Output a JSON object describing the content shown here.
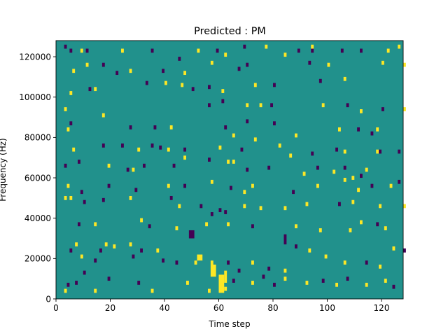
{
  "chart_data": {
    "type": "heatmap",
    "title": "Predicted : PM",
    "xlabel": "Time step",
    "ylabel": "Frequency (Hz)",
    "xlim": [
      0,
      128
    ],
    "ylim": [
      0,
      128000
    ],
    "x_ticks": [
      0,
      20,
      40,
      60,
      80,
      100,
      120
    ],
    "y_ticks": [
      0,
      20000,
      40000,
      60000,
      80000,
      100000,
      120000
    ],
    "x_tick_labels": [
      "0",
      "20",
      "40",
      "60",
      "80",
      "100",
      "120"
    ],
    "y_tick_labels": [
      "0",
      "20000",
      "40000",
      "60000",
      "80000",
      "100000",
      "120000"
    ],
    "grid": false,
    "legend": "none",
    "value_levels": [
      -1,
      0,
      1
    ],
    "colormap": {
      "-1": "#440154",
      "0": "#21918c",
      "1": "#fde725"
    },
    "background_value": 0,
    "bins": {
      "time_steps": 128,
      "frequency_bins": 128,
      "frequency_bin_hz": 1000
    },
    "cells": [
      [
        3,
        124,
        -1
      ],
      [
        5,
        122,
        -1
      ],
      [
        9,
        122,
        1
      ],
      [
        11,
        122,
        -1
      ],
      [
        24,
        122,
        1
      ],
      [
        35,
        122,
        -1
      ],
      [
        52,
        122,
        1
      ],
      [
        59,
        122,
        -1
      ],
      [
        89,
        122,
        -1
      ],
      [
        94,
        122,
        -1
      ],
      [
        105,
        122,
        -1
      ],
      [
        112,
        122,
        -1
      ],
      [
        122,
        122,
        1
      ],
      [
        126,
        124,
        1
      ],
      [
        94,
        124,
        1
      ],
      [
        69,
        124,
        -1
      ],
      [
        77,
        124,
        1
      ],
      [
        6,
        112,
        1
      ],
      [
        11,
        115,
        1
      ],
      [
        17,
        115,
        -1
      ],
      [
        22,
        111,
        -1
      ],
      [
        27,
        112,
        1
      ],
      [
        39,
        112,
        -1
      ],
      [
        47,
        111,
        1
      ],
      [
        57,
        116,
        1
      ],
      [
        67,
        113,
        -1
      ],
      [
        70,
        115,
        -1
      ],
      [
        93,
        116,
        -1
      ],
      [
        100,
        115,
        1
      ],
      [
        120,
        116,
        1
      ],
      [
        128,
        115,
        1
      ],
      [
        45,
        118,
        -1
      ],
      [
        62,
        120,
        1
      ],
      [
        84,
        120,
        1
      ],
      [
        5,
        101,
        1
      ],
      [
        12,
        103,
        -1
      ],
      [
        14,
        103,
        1
      ],
      [
        33,
        106,
        -1
      ],
      [
        40,
        106,
        1
      ],
      [
        46,
        105,
        1
      ],
      [
        50,
        103,
        -1
      ],
      [
        56,
        104,
        -1
      ],
      [
        61,
        102,
        1
      ],
      [
        73,
        105,
        1
      ],
      [
        80,
        105,
        -1
      ],
      [
        97,
        107,
        -1
      ],
      [
        106,
        108,
        1
      ],
      [
        3,
        93,
        1
      ],
      [
        17,
        90,
        1
      ],
      [
        61,
        97,
        -1
      ],
      [
        70,
        95,
        1
      ],
      [
        75,
        95,
        1
      ],
      [
        79,
        95,
        -1
      ],
      [
        98,
        95,
        1
      ],
      [
        107,
        95,
        -1
      ],
      [
        112,
        92,
        1
      ],
      [
        120,
        93,
        -1
      ],
      [
        128,
        93,
        1
      ],
      [
        56,
        95,
        -1
      ],
      [
        4,
        83,
        1
      ],
      [
        5,
        86,
        -1
      ],
      [
        27,
        84,
        -1
      ],
      [
        36,
        84,
        -1
      ],
      [
        42,
        84,
        1
      ],
      [
        62,
        84,
        -1
      ],
      [
        70,
        87,
        -1
      ],
      [
        80,
        86,
        -1
      ],
      [
        104,
        83,
        1
      ],
      [
        111,
        83,
        -1
      ],
      [
        118,
        83,
        1
      ],
      [
        116,
        81,
        -1
      ],
      [
        88,
        80,
        1
      ],
      [
        73,
        78,
        1
      ],
      [
        65,
        80,
        1
      ],
      [
        6,
        73,
        1
      ],
      [
        17,
        75,
        -1
      ],
      [
        24,
        75,
        -1
      ],
      [
        30,
        73,
        1
      ],
      [
        35,
        75,
        -1
      ],
      [
        38,
        74,
        -1
      ],
      [
        41,
        73,
        1
      ],
      [
        47,
        73,
        -1
      ],
      [
        60,
        74,
        1
      ],
      [
        68,
        73,
        -1
      ],
      [
        82,
        75,
        1
      ],
      [
        103,
        73,
        -1
      ],
      [
        106,
        72,
        1
      ],
      [
        118,
        72,
        1
      ],
      [
        119,
        72,
        -1
      ],
      [
        126,
        72,
        -1
      ],
      [
        86,
        70,
        1
      ],
      [
        94,
        71,
        -1
      ],
      [
        3,
        65,
        -1
      ],
      [
        8,
        67,
        -1
      ],
      [
        19,
        65,
        1
      ],
      [
        26,
        63,
        -1
      ],
      [
        28,
        63,
        1
      ],
      [
        32,
        65,
        -1
      ],
      [
        43,
        65,
        -1
      ],
      [
        47,
        69,
        1
      ],
      [
        56,
        68,
        -1
      ],
      [
        63,
        67,
        1
      ],
      [
        65,
        67,
        1
      ],
      [
        70,
        63,
        -1
      ],
      [
        78,
        64,
        -1
      ],
      [
        91,
        61,
        1
      ],
      [
        96,
        64,
        -1
      ],
      [
        102,
        62,
        1
      ],
      [
        106,
        64,
        -1
      ],
      [
        109,
        59,
        1
      ],
      [
        112,
        60,
        -1
      ],
      [
        114,
        63,
        1
      ],
      [
        4,
        55,
        1
      ],
      [
        9,
        52,
        -1
      ],
      [
        19,
        55,
        -1
      ],
      [
        29,
        53,
        -1
      ],
      [
        41,
        55,
        1
      ],
      [
        47,
        55,
        -1
      ],
      [
        57,
        57,
        1
      ],
      [
        64,
        54,
        -1
      ],
      [
        69,
        52,
        1
      ],
      [
        72,
        55,
        1
      ],
      [
        87,
        52,
        -1
      ],
      [
        96,
        55,
        1
      ],
      [
        106,
        58,
        1
      ],
      [
        111,
        53,
        1
      ],
      [
        116,
        55,
        -1
      ],
      [
        123,
        55,
        1
      ],
      [
        126,
        57,
        -1
      ],
      [
        3,
        49,
        1
      ],
      [
        5,
        49,
        1
      ],
      [
        10,
        47,
        -1
      ],
      [
        17,
        48,
        -1
      ],
      [
        27,
        49,
        1
      ],
      [
        42,
        49,
        -1
      ],
      [
        45,
        45,
        1
      ],
      [
        53,
        45,
        -1
      ],
      [
        57,
        41,
        -1
      ],
      [
        60,
        43,
        -1
      ],
      [
        62,
        42,
        -1
      ],
      [
        69,
        45,
        1
      ],
      [
        75,
        44,
        1
      ],
      [
        84,
        44,
        1
      ],
      [
        92,
        46,
        1
      ],
      [
        104,
        46,
        -1
      ],
      [
        109,
        47,
        1
      ],
      [
        119,
        45,
        1
      ],
      [
        128,
        45,
        1
      ],
      [
        8,
        36,
        -1
      ],
      [
        14,
        36,
        1
      ],
      [
        31,
        38,
        1
      ],
      [
        34,
        35,
        -1
      ],
      [
        44,
        34,
        1
      ],
      [
        55,
        36,
        1
      ],
      [
        63,
        36,
        1
      ],
      [
        72,
        35,
        -1
      ],
      [
        88,
        35,
        1
      ],
      [
        97,
        33,
        1
      ],
      [
        108,
        33,
        1
      ],
      [
        112,
        37,
        1
      ],
      [
        118,
        36,
        -1
      ],
      [
        121,
        34,
        1
      ],
      [
        5,
        23,
        -1
      ],
      [
        7,
        26,
        1
      ],
      [
        9,
        20,
        1
      ],
      [
        14,
        18,
        -1
      ],
      [
        16,
        23,
        -1
      ],
      [
        18,
        26,
        1
      ],
      [
        21,
        25,
        1
      ],
      [
        27,
        26,
        1
      ],
      [
        28,
        20,
        -1
      ],
      [
        31,
        23,
        -1
      ],
      [
        37,
        23,
        1
      ],
      [
        39,
        18,
        -1
      ],
      [
        44,
        17,
        -1
      ],
      [
        51,
        17,
        1
      ],
      [
        57,
        17,
        1
      ],
      [
        63,
        17,
        -1
      ],
      [
        67,
        13,
        -1
      ],
      [
        72,
        17,
        1
      ],
      [
        78,
        14,
        -1
      ],
      [
        84,
        13,
        1
      ],
      [
        88,
        25,
        -1
      ],
      [
        93,
        23,
        1
      ],
      [
        99,
        20,
        1
      ],
      [
        106,
        17,
        1
      ],
      [
        114,
        17,
        -1
      ],
      [
        119,
        15,
        1
      ],
      [
        124,
        24,
        1
      ],
      [
        128,
        23,
        -1
      ],
      [
        3,
        3,
        1
      ],
      [
        4,
        6,
        -1
      ],
      [
        7,
        7,
        -1
      ],
      [
        10,
        12,
        -1
      ],
      [
        14,
        3,
        1
      ],
      [
        19,
        9,
        -1
      ],
      [
        30,
        7,
        -1
      ],
      [
        35,
        3,
        1
      ],
      [
        48,
        7,
        1
      ],
      [
        56,
        3,
        1
      ],
      [
        62,
        4,
        1
      ],
      [
        65,
        8,
        -1
      ],
      [
        72,
        7,
        1
      ],
      [
        76,
        10,
        -1
      ],
      [
        80,
        6,
        -1
      ],
      [
        84,
        9,
        1
      ],
      [
        92,
        7,
        1
      ],
      [
        98,
        8,
        -1
      ],
      [
        103,
        6,
        1
      ],
      [
        107,
        9,
        -1
      ],
      [
        114,
        6,
        1
      ],
      [
        121,
        8,
        1
      ],
      [
        124,
        5,
        -1
      ]
    ],
    "blocks": [
      [
        60,
        3,
        2,
        9,
        1
      ],
      [
        62,
        8,
        1,
        6,
        1
      ],
      [
        57,
        11,
        2,
        6,
        1
      ],
      [
        49,
        30,
        2,
        4,
        -1
      ],
      [
        84,
        27,
        1,
        5,
        -1
      ],
      [
        52,
        19,
        2,
        3,
        1
      ]
    ]
  }
}
